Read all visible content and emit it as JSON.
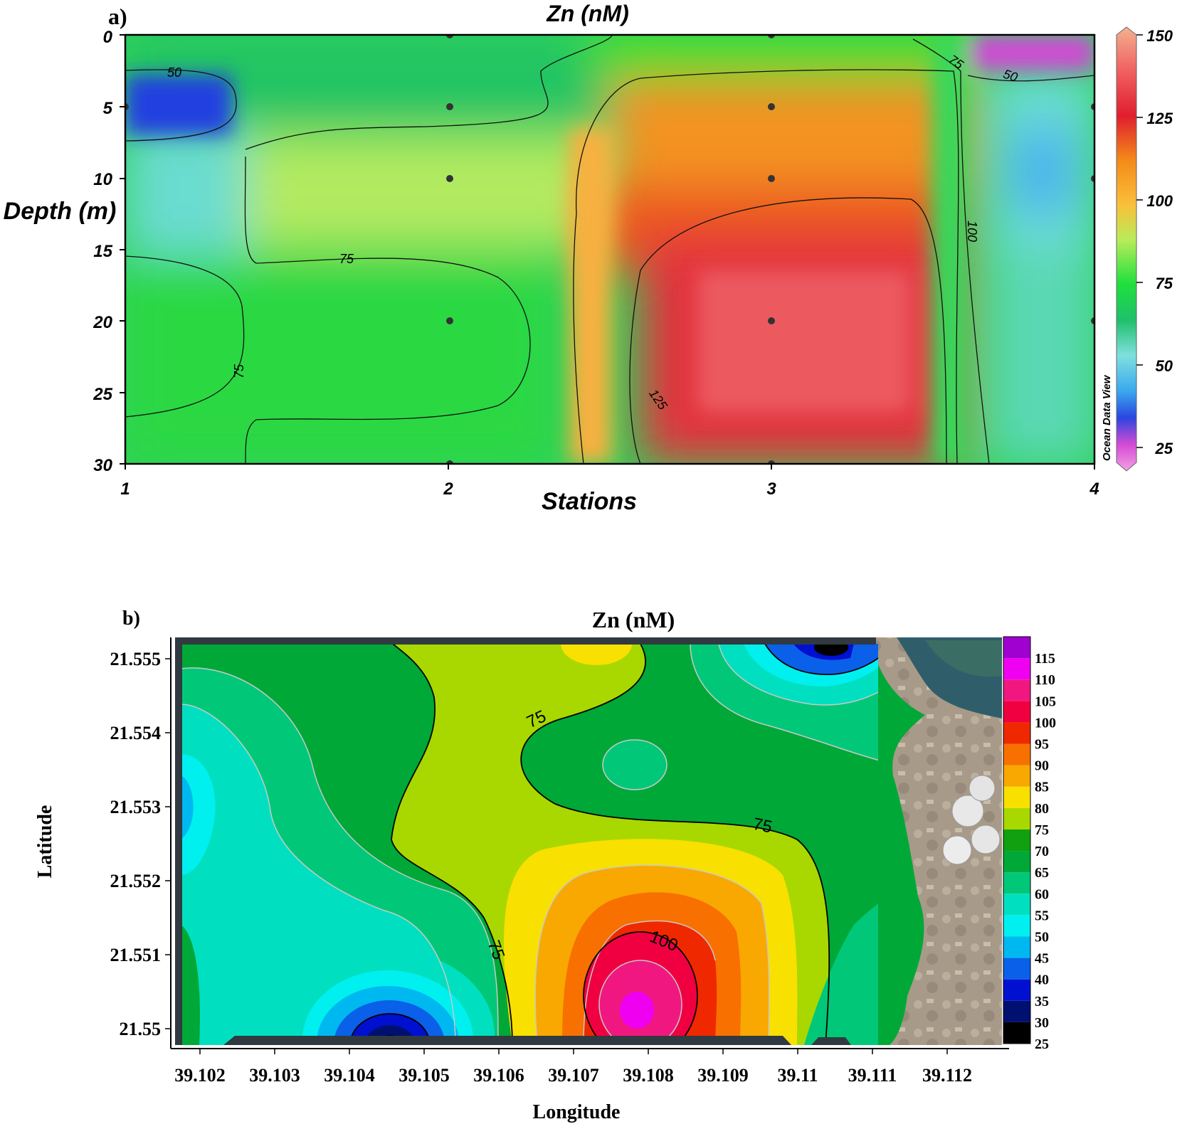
{
  "panel_a": {
    "panel_label": "a)",
    "title": "Zn (nM)",
    "xlabel": "Stations",
    "ylabel": "Depth (m)",
    "watermark": "Ocean Data View",
    "xticks": [
      "1",
      "2",
      "3",
      "4"
    ],
    "yticks": [
      "0",
      "5",
      "10",
      "15",
      "20",
      "25",
      "30"
    ],
    "colorbar_ticks": [
      "150",
      "125",
      "100",
      "75",
      "50",
      "25"
    ],
    "contour_labels": [
      "50",
      "75",
      "50",
      "75",
      "100",
      "75",
      "125"
    ]
  },
  "panel_b": {
    "panel_label": "b)",
    "title": "Zn (nM)",
    "xlabel": "Longitude",
    "ylabel": "Latitude",
    "xticks": [
      "39.102",
      "39.103",
      "39.104",
      "39.105",
      "39.106",
      "39.107",
      "39.108",
      "39.109",
      "39.11",
      "39.111",
      "39.112"
    ],
    "yticks": [
      "21.555",
      "21.554",
      "21.553",
      "21.552",
      "21.551",
      "21.55"
    ],
    "colorbar_ticks": [
      "115",
      "110",
      "105",
      "100",
      "95",
      "90",
      "85",
      "80",
      "75",
      "70",
      "65",
      "60",
      "55",
      "50",
      "45",
      "40",
      "35",
      "30",
      "25"
    ],
    "contour_labels": [
      "75",
      "75",
      "75",
      "100"
    ]
  },
  "colors": {
    "a_scale": [
      "#f4a0e4",
      "#d44ad4",
      "#2a46e0",
      "#3aa8ee",
      "#7fe0de",
      "#1fc06a",
      "#1ee03c",
      "#b8ec5a",
      "#fbbf3a",
      "#f48a1a",
      "#e6461a",
      "#e01e2e",
      "#f06060",
      "#f4b090"
    ],
    "b_bands": [
      "#000000",
      "#001070",
      "#0010d0",
      "#0a60e8",
      "#00b8f0",
      "#00f0f0",
      "#00e0c0",
      "#00c878",
      "#00a838",
      "#10a010",
      "#a8d800",
      "#f8e000",
      "#f8a800",
      "#f87000",
      "#f02800",
      "#f00040",
      "#f01880",
      "#f000f0",
      "#a000d0"
    ]
  },
  "chart_data": [
    {
      "type": "heatmap",
      "title": "Zn (nM)",
      "xlabel": "Stations",
      "ylabel": "Depth (m)",
      "x": [
        1,
        2,
        3,
        4
      ],
      "y": [
        0,
        5,
        10,
        20,
        30
      ],
      "xlim": [
        1,
        4
      ],
      "ylim": [
        30,
        0
      ],
      "colorbar_range": [
        20,
        150
      ],
      "sample_points": [
        {
          "station": 1,
          "depth": 5,
          "zn": 40
        },
        {
          "station": 2,
          "depth": 0,
          "zn": 68
        },
        {
          "station": 2,
          "depth": 5,
          "zn": 68
        },
        {
          "station": 2,
          "depth": 10,
          "zn": 92
        },
        {
          "station": 2,
          "depth": 20,
          "zn": 78
        },
        {
          "station": 2,
          "depth": 30,
          "zn": 78
        },
        {
          "station": 3,
          "depth": 0,
          "zn": 80
        },
        {
          "station": 3,
          "depth": 5,
          "zn": 112
        },
        {
          "station": 3,
          "depth": 10,
          "zn": 122
        },
        {
          "station": 3,
          "depth": 20,
          "zn": 140
        },
        {
          "station": 3,
          "depth": 30,
          "zn": 138
        },
        {
          "station": 4,
          "depth": 0,
          "zn": 30
        },
        {
          "station": 4,
          "depth": 5,
          "zn": 57
        },
        {
          "station": 4,
          "depth": 10,
          "zn": 50
        },
        {
          "station": 4,
          "depth": 20,
          "zn": 63
        }
      ],
      "contours": [
        50,
        75,
        100,
        125
      ]
    },
    {
      "type": "heatmap",
      "title": "Zn (nM)",
      "xlabel": "Longitude",
      "ylabel": "Latitude",
      "xlim": [
        39.1016,
        39.1128
      ],
      "ylim": [
        21.5498,
        21.5552
      ],
      "colorbar_range": [
        25,
        120
      ],
      "contour_interval": 5,
      "features": [
        {
          "kind": "maximum",
          "lon": 39.1079,
          "lat": 21.5503,
          "zn": 115
        },
        {
          "kind": "minimum",
          "lon": 39.1046,
          "lat": 21.55,
          "zn": 30
        },
        {
          "kind": "minimum",
          "lon": 39.1106,
          "lat": 21.5551,
          "zn": 30
        },
        {
          "kind": "minimum",
          "lon": 39.1017,
          "lat": 21.553,
          "zn": 48
        },
        {
          "kind": "maximum",
          "lon": 39.1077,
          "lat": 21.5552,
          "zn": 82
        }
      ],
      "contours": [
        75,
        100
      ]
    }
  ]
}
